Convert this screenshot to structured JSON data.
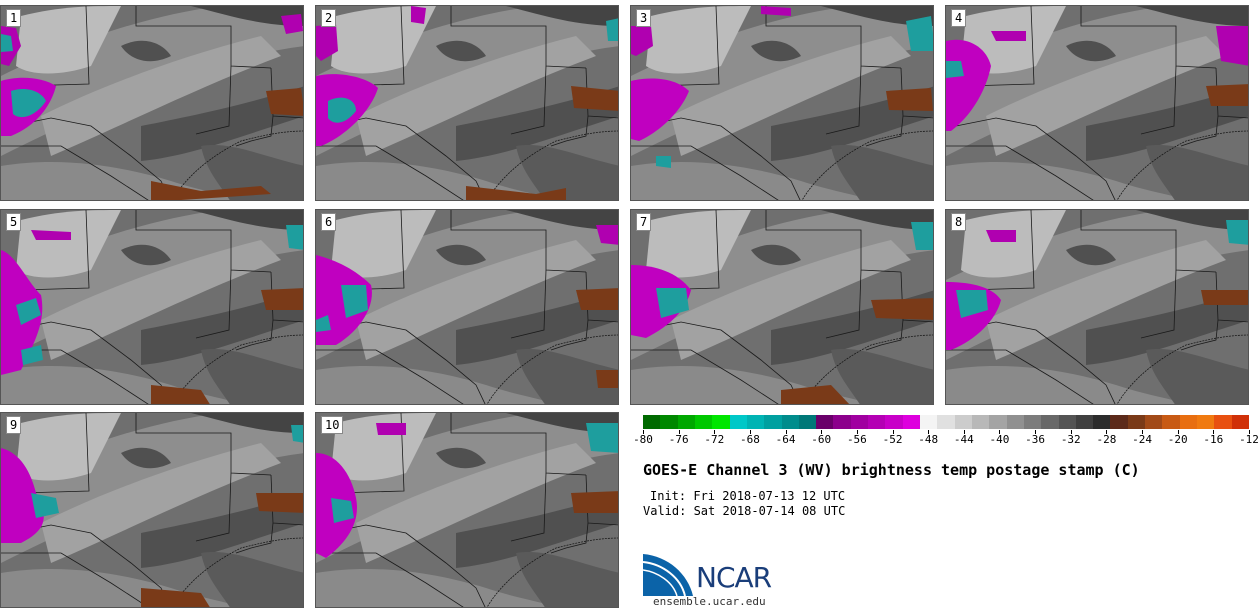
{
  "panels": [
    {
      "label": "1"
    },
    {
      "label": "2"
    },
    {
      "label": "3"
    },
    {
      "label": "4"
    },
    {
      "label": "5"
    },
    {
      "label": "6"
    },
    {
      "label": "7"
    },
    {
      "label": "8"
    },
    {
      "label": "9"
    },
    {
      "label": "10"
    }
  ],
  "colorbar": {
    "ticks": [
      "-80",
      "-76",
      "-72",
      "-68",
      "-64",
      "-60",
      "-56",
      "-52",
      "-48",
      "-44",
      "-40",
      "-36",
      "-32",
      "-28",
      "-24",
      "-20",
      "-16",
      "-12"
    ],
    "colors": [
      "#006a00",
      "#008800",
      "#00a800",
      "#00c800",
      "#00e600",
      "#00c8c8",
      "#00b4b4",
      "#00a0a0",
      "#008c8c",
      "#007878",
      "#6a006a",
      "#8c008c",
      "#a000a0",
      "#b400b4",
      "#c800c8",
      "#de00de",
      "#f4f4f4",
      "#e0e0e0",
      "#cccccc",
      "#b8b8b8",
      "#a4a4a4",
      "#909090",
      "#7c7c7c",
      "#686868",
      "#545454",
      "#404040",
      "#2c2c2c",
      "#5c2a1a",
      "#7a3a18",
      "#a24a18",
      "#c85a14",
      "#e86e10",
      "#f07a10",
      "#e85010",
      "#d03008"
    ]
  },
  "title": "GOES-E Channel 3 (WV) brightness temp postage stamp (C)",
  "init": "Init: Fri 2018-07-13 12 UTC",
  "valid": "Valid: Sat 2018-07-14 08 UTC",
  "logo_text": "NCAR",
  "site": "ensemble.ucar.edu"
}
